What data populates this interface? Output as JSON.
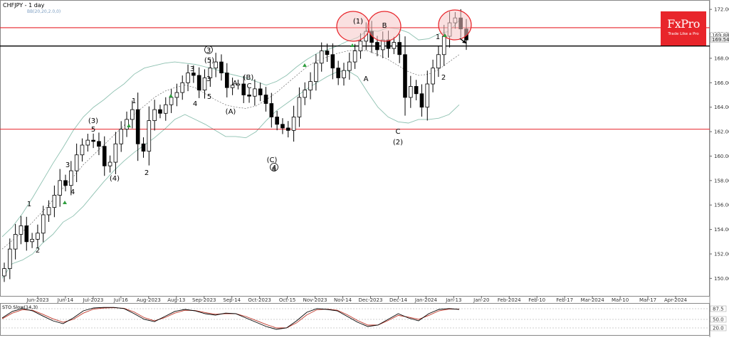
{
  "header": {
    "symbol_title": "CHFJPY - 1 day",
    "indicator_label": "BB(20,20,2.0,0)"
  },
  "logo": {
    "name": "FxPro",
    "tagline": "Trade Like a Pro"
  },
  "colors": {
    "resistance": "#e8252b",
    "support": "#000000",
    "bull": "#ffffff",
    "bear": "#000000",
    "bands": "#8dc0b0",
    "circle_fill": "#f5c6c6",
    "circle_stroke": "#e8252b",
    "sto_main": "#000000",
    "sto_signal": "#c0392b",
    "arrow_green": "#2e9e3e"
  },
  "chart_data": [
    {
      "type": "candlestick",
      "title": "CHFJPY - 1 day",
      "ylim": [
        148.8,
        172.3
      ],
      "y_ticks": [
        "150.000",
        "152.000",
        "154.000",
        "156.000",
        "158.000",
        "160.000",
        "162.000",
        "164.000",
        "166.000",
        "168.000",
        "170.000",
        "172.000"
      ],
      "x_ticks": [
        "Jun-2023",
        "Jun-14",
        "Jul-2023",
        "Jul-16",
        "Aug-2023",
        "Aug-13",
        "Sep-2023",
        "Sep-14",
        "Oct-2023",
        "Oct-15",
        "Nov-2023",
        "Nov-14",
        "Dec-2023",
        "Dec-14",
        "Jan-2024",
        "Jan-13",
        "Jan-20",
        "Feb-2024",
        "Feb-10",
        "Feb-17",
        "Mar-2024",
        "Mar-10",
        "Mar-17",
        "Apr-2024"
      ],
      "price_labels": [
        "169.885",
        "169.546"
      ],
      "horizontal_lines": [
        {
          "role": "resistance",
          "value": 170.5
        },
        {
          "role": "support",
          "value": 169.0
        },
        {
          "role": "resistance",
          "value": 162.2
        }
      ],
      "close_series": [
        150.8,
        152.4,
        153.6,
        154.3,
        153.0,
        153.2,
        153.7,
        155.2,
        155.8,
        156.8,
        158.0,
        157.6,
        158.8,
        160.1,
        160.9,
        161.3,
        161.2,
        160.8,
        159.2,
        159.5,
        161.0,
        162.2,
        163.0,
        163.8,
        161.0,
        160.4,
        162.9,
        163.8,
        163.5,
        164.2,
        164.8,
        165.2,
        166.0,
        166.8,
        166.6,
        165.4,
        166.4,
        167.2,
        167.7,
        166.8,
        165.6,
        165.8,
        165.9,
        165.0,
        164.9,
        165.5,
        165.0,
        164.3,
        163.2,
        162.6,
        162.3,
        162.1,
        163.2,
        164.8,
        165.4,
        166.1,
        167.6,
        168.6,
        168.3,
        167.2,
        166.4,
        167.0,
        167.7,
        168.6,
        169.4,
        170.2,
        169.3,
        168.7,
        169.5,
        168.8,
        169.3,
        168.3,
        164.8,
        165.7,
        165.1,
        164.0,
        165.9,
        167.2,
        168.3,
        169.8,
        170.9,
        171.3,
        170.4,
        169.5
      ],
      "bollinger": {
        "upper": [
          153.4,
          154.2,
          155.3,
          156.6,
          158.0,
          159.4,
          160.7,
          162.1,
          163.2,
          164.0,
          164.6,
          165.3,
          165.9,
          166.7,
          167.2,
          167.4,
          167.6,
          167.7,
          167.6,
          167.5,
          167.3,
          167.1,
          166.8,
          166.6,
          166.4,
          166.1,
          165.8,
          166.1,
          166.6,
          167.3,
          167.9,
          168.4,
          168.7,
          169.0,
          169.4,
          169.7,
          170.3,
          170.2,
          170.5,
          170.4,
          170.1,
          169.5,
          169.6,
          170.0,
          170.2,
          171.1
        ],
        "middle": [
          152.4,
          153.1,
          153.8,
          154.6,
          155.5,
          156.4,
          157.4,
          158.3,
          159.3,
          160.1,
          160.9,
          161.7,
          162.5,
          163.4,
          164.1,
          164.8,
          165.3,
          165.6,
          165.8,
          165.6,
          165.1,
          164.6,
          164.2,
          164.0,
          163.9,
          164.1,
          164.6,
          165.2,
          165.9,
          166.6,
          167.3,
          167.8,
          168.1,
          168.4,
          168.6,
          168.7,
          168.6,
          168.3,
          167.9,
          167.4,
          166.9,
          166.6,
          166.7,
          167.1,
          167.7,
          168.3
        ],
        "lower": [
          150.0,
          151.2,
          151.5,
          152.0,
          152.9,
          153.6,
          154.6,
          155.1,
          155.9,
          156.9,
          157.9,
          158.8,
          159.6,
          160.3,
          160.9,
          161.5,
          162.2,
          163.0,
          163.4,
          163.0,
          162.6,
          162.1,
          161.6,
          161.6,
          161.5,
          162.0,
          162.9,
          163.7,
          164.3,
          164.9,
          165.5,
          166.0,
          166.5,
          166.9,
          167.0,
          166.5,
          165.2,
          164.0,
          163.2,
          162.8,
          162.7,
          163.0,
          163.0,
          163.1,
          163.4,
          164.2
        ]
      },
      "wave_labels": [
        "1",
        "2",
        "(3)",
        "3",
        "4",
        "5",
        "(4)",
        "1",
        "2",
        "3",
        "4",
        "3",
        "5",
        "(5)",
        "A",
        "C",
        "(A)",
        "(B)",
        "(C)",
        "4",
        "(1)",
        "A",
        "B",
        "C",
        "(2)",
        "1",
        "2"
      ],
      "circled_wave_labels": [
        "3",
        "4"
      ]
    },
    {
      "type": "line",
      "title": "STO Slow(14,3)",
      "ylim": [
        0,
        100
      ],
      "y_ticks": [
        "87.5",
        "50.0",
        "20.0"
      ],
      "k_series": [
        55,
        78,
        88,
        80,
        62,
        45,
        35,
        55,
        80,
        90,
        92,
        92,
        88,
        70,
        50,
        42,
        60,
        78,
        85,
        80,
        70,
        65,
        72,
        70,
        55,
        40,
        25,
        15,
        20,
        45,
        75,
        88,
        85,
        80,
        60,
        40,
        25,
        30,
        50,
        70,
        55,
        45,
        70,
        85,
        88,
        85
      ],
      "d_series": [
        52,
        72,
        84,
        82,
        68,
        52,
        40,
        50,
        72,
        86,
        90,
        91,
        89,
        76,
        56,
        45,
        56,
        72,
        82,
        81,
        74,
        68,
        70,
        70,
        60,
        46,
        32,
        20,
        20,
        38,
        66,
        84,
        86,
        82,
        66,
        46,
        30,
        30,
        46,
        64,
        58,
        50,
        64,
        80,
        86,
        86
      ]
    }
  ]
}
